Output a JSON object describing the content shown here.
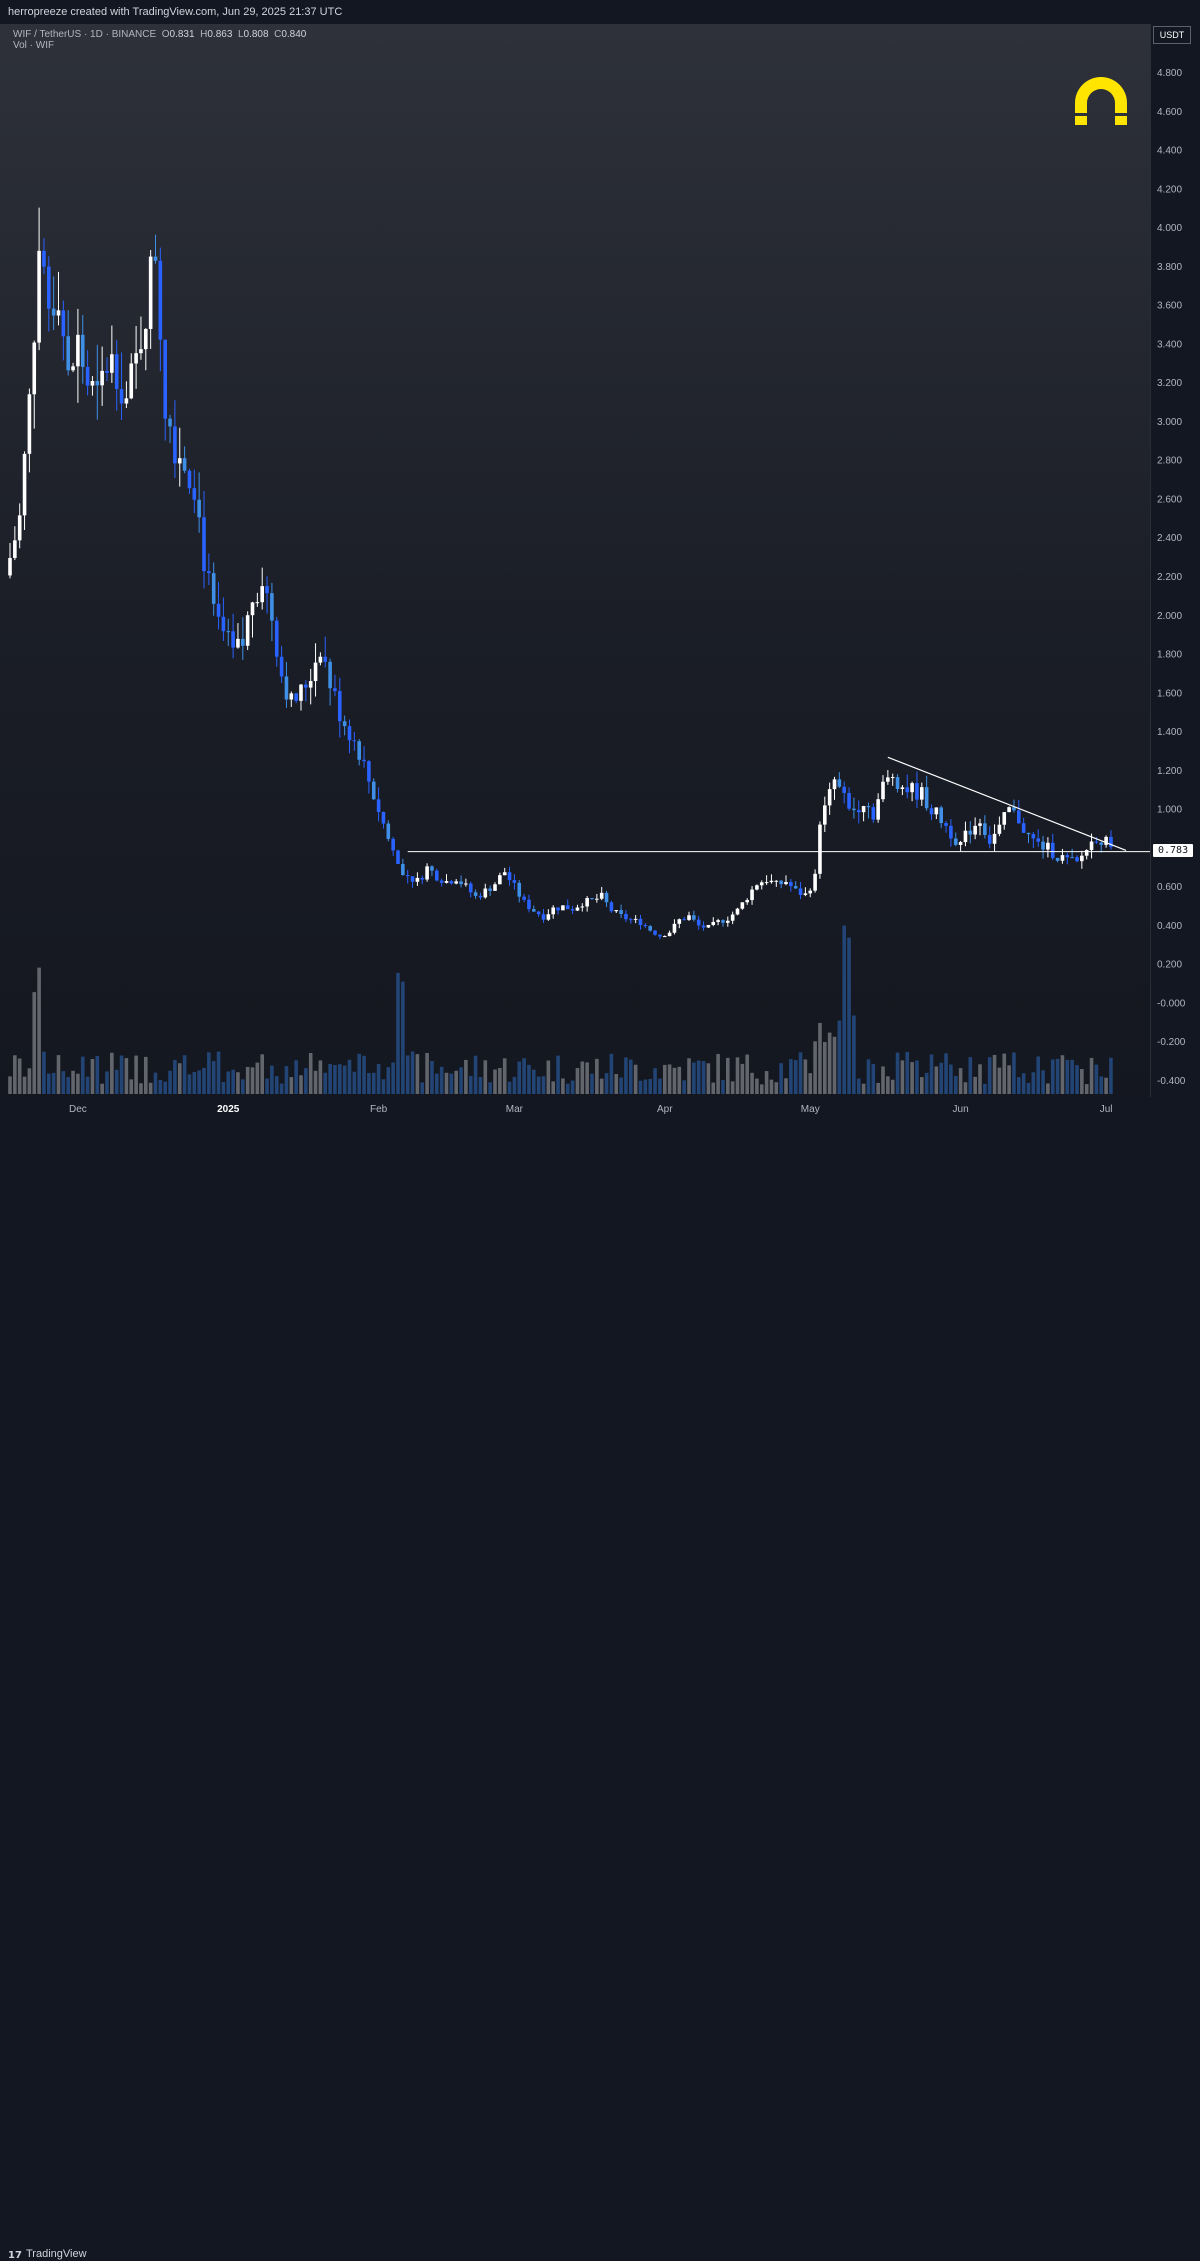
{
  "header": {
    "caption": "herropreeze created with TradingView.com, Jun 29, 2025 21:37 UTC"
  },
  "legend": {
    "symbol": "WIF / TetherUS · 1D · BINANCE",
    "open_label": "O",
    "open": "0.831",
    "high_label": "H",
    "high": "0.863",
    "low_label": "L",
    "low": "0.808",
    "close_label": "C",
    "close": "0.840",
    "volume_label": "Vol · WIF"
  },
  "axis": {
    "currency": "USDT",
    "current_price_label": "0.783"
  },
  "footer": {
    "brand": "TradingView"
  },
  "logo": {
    "icon": "horseshoe-icon",
    "color": "#ffe500"
  },
  "colors": {
    "up": "#ffffff",
    "down": "#2962ff",
    "down_alt": "#3f8fe6",
    "line": "#ffffff",
    "vol_up": "#6b6e76",
    "vol_down": "#244a80"
  },
  "chart_data": {
    "type": "candlestick",
    "ylim": [
      -0.4,
      4.9
    ],
    "y_ticks": [
      "4.800",
      "4.600",
      "4.400",
      "4.200",
      "4.000",
      "3.800",
      "3.600",
      "3.400",
      "3.200",
      "3.000",
      "2.800",
      "2.600",
      "2.400",
      "2.200",
      "2.000",
      "1.800",
      "1.600",
      "1.400",
      "1.200",
      "1.000",
      "0.800",
      "0.600",
      "0.400",
      "0.200",
      "-0.000",
      "-0.200",
      "-0.400"
    ],
    "x_labels": [
      "Dec",
      "2025",
      "Feb",
      "Mar",
      "Apr",
      "May",
      "Jun",
      "Jul"
    ],
    "x_label_days": [
      14,
      45,
      76,
      104,
      135,
      165,
      196,
      226
    ],
    "price_path": [
      [
        0,
        2.3
      ],
      [
        2,
        2.5
      ],
      [
        4,
        3.1
      ],
      [
        6,
        3.9
      ],
      [
        8,
        3.6
      ],
      [
        10,
        3.7
      ],
      [
        12,
        3.2
      ],
      [
        14,
        3.4
      ],
      [
        16,
        3.2
      ],
      [
        18,
        3.1
      ],
      [
        20,
        3.3
      ],
      [
        22,
        3.3
      ],
      [
        24,
        3.1
      ],
      [
        26,
        3.3
      ],
      [
        28,
        3.6
      ],
      [
        30,
        3.9
      ],
      [
        32,
        3.1
      ],
      [
        34,
        2.9
      ],
      [
        36,
        2.8
      ],
      [
        38,
        2.7
      ],
      [
        40,
        2.3
      ],
      [
        42,
        2.0
      ],
      [
        44,
        1.9
      ],
      [
        46,
        1.8
      ],
      [
        48,
        1.85
      ],
      [
        50,
        2.1
      ],
      [
        52,
        2.2
      ],
      [
        54,
        2.0
      ],
      [
        56,
        1.7
      ],
      [
        58,
        1.55
      ],
      [
        60,
        1.6
      ],
      [
        62,
        1.7
      ],
      [
        64,
        1.85
      ],
      [
        66,
        1.65
      ],
      [
        68,
        1.5
      ],
      [
        70,
        1.4
      ],
      [
        72,
        1.3
      ],
      [
        74,
        1.15
      ],
      [
        76,
        1.0
      ],
      [
        78,
        0.85
      ],
      [
        80,
        0.72
      ],
      [
        82,
        0.66
      ],
      [
        84,
        0.63
      ],
      [
        86,
        0.7
      ],
      [
        88,
        0.66
      ],
      [
        90,
        0.63
      ],
      [
        92,
        0.65
      ],
      [
        94,
        0.6
      ],
      [
        96,
        0.55
      ],
      [
        98,
        0.58
      ],
      [
        100,
        0.62
      ],
      [
        102,
        0.68
      ],
      [
        104,
        0.6
      ],
      [
        106,
        0.52
      ],
      [
        108,
        0.48
      ],
      [
        110,
        0.45
      ],
      [
        112,
        0.49
      ],
      [
        114,
        0.5
      ],
      [
        116,
        0.49
      ],
      [
        118,
        0.52
      ],
      [
        120,
        0.53
      ],
      [
        122,
        0.55
      ],
      [
        124,
        0.48
      ],
      [
        126,
        0.45
      ],
      [
        128,
        0.43
      ],
      [
        130,
        0.42
      ],
      [
        132,
        0.38
      ],
      [
        134,
        0.35
      ],
      [
        136,
        0.37
      ],
      [
        138,
        0.43
      ],
      [
        140,
        0.45
      ],
      [
        142,
        0.4
      ],
      [
        144,
        0.39
      ],
      [
        146,
        0.42
      ],
      [
        148,
        0.44
      ],
      [
        150,
        0.48
      ],
      [
        152,
        0.55
      ],
      [
        154,
        0.62
      ],
      [
        156,
        0.64
      ],
      [
        158,
        0.61
      ],
      [
        160,
        0.63
      ],
      [
        162,
        0.58
      ],
      [
        164,
        0.56
      ],
      [
        166,
        0.65
      ],
      [
        167,
        0.95
      ],
      [
        168,
        1.0
      ],
      [
        170,
        1.15
      ],
      [
        172,
        1.05
      ],
      [
        174,
        1.0
      ],
      [
        176,
        1.05
      ],
      [
        178,
        0.98
      ],
      [
        180,
        1.12
      ],
      [
        182,
        1.18
      ],
      [
        184,
        1.12
      ],
      [
        186,
        1.1
      ],
      [
        188,
        1.08
      ],
      [
        190,
        1.0
      ],
      [
        192,
        0.95
      ],
      [
        194,
        0.88
      ],
      [
        196,
        0.82
      ],
      [
        198,
        0.9
      ],
      [
        200,
        0.95
      ],
      [
        202,
        0.84
      ],
      [
        204,
        0.9
      ],
      [
        206,
        1.0
      ],
      [
        208,
        0.95
      ],
      [
        210,
        0.86
      ],
      [
        212,
        0.82
      ],
      [
        214,
        0.8
      ],
      [
        216,
        0.76
      ],
      [
        218,
        0.74
      ],
      [
        220,
        0.72
      ],
      [
        222,
        0.8
      ],
      [
        224,
        0.86
      ],
      [
        226,
        0.83
      ],
      [
        227,
        0.84
      ]
    ],
    "support_level": 0.783,
    "trendline": [
      [
        181,
        1.27
      ],
      [
        226,
        0.8
      ]
    ],
    "days_total": 228
  }
}
